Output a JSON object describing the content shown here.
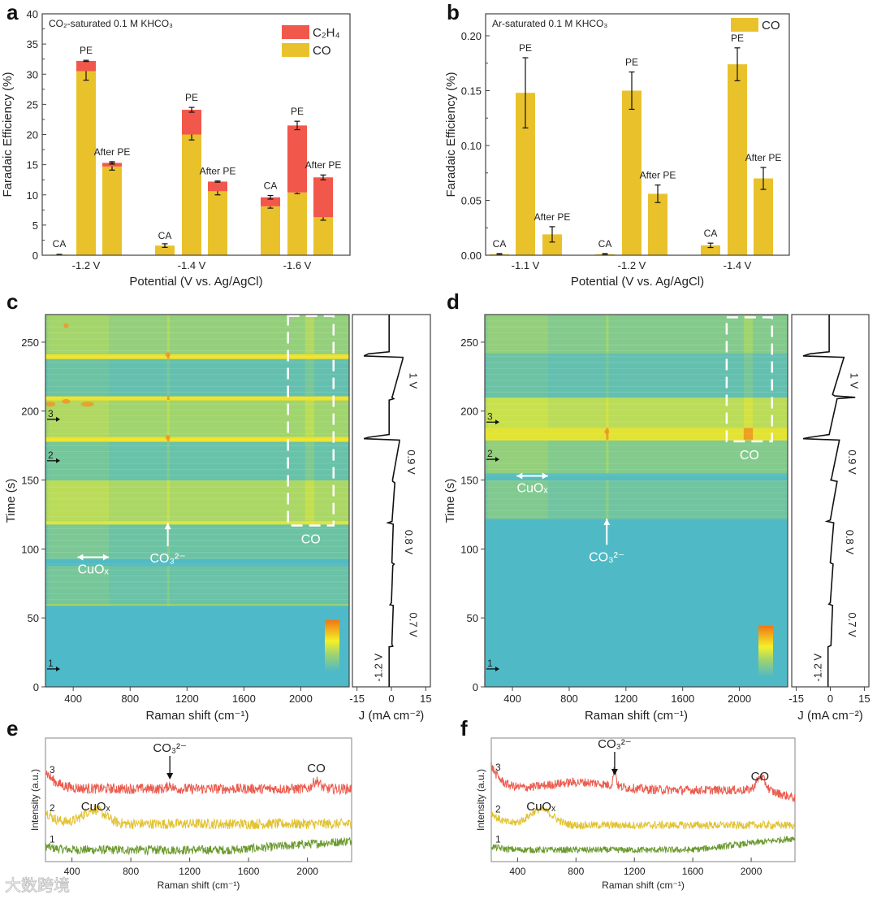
{
  "panel_letters": [
    "a",
    "b",
    "c",
    "d",
    "e",
    "f"
  ],
  "watermark": "大数跨境",
  "chart_data": [
    {
      "panel": "a",
      "type": "bar",
      "stacked": true,
      "title": "CO₂-saturated 0.1 M KHCO₃",
      "xlabel": "Potential (V vs. Ag/AgCl)",
      "ylabel": "Faradaic Efficiency (%)",
      "ylim": [
        0,
        40
      ],
      "yticks": [
        0,
        5,
        10,
        15,
        20,
        25,
        30,
        35,
        40
      ],
      "ytick_labels": [
        "0",
        "5",
        "10",
        "15",
        "20",
        "25",
        "30",
        "35",
        "40"
      ],
      "groups": [
        "-1.2 V",
        "-1.4 V",
        "-1.6 V"
      ],
      "bar_labels": [
        "CA",
        "PE",
        "After PE"
      ],
      "legend": [
        {
          "name": "C₂H₄",
          "color": "#f2574b"
        },
        {
          "name": "CO",
          "color": "#e9c22b"
        }
      ],
      "legend_position": "top-right",
      "series": [
        {
          "name": "CO",
          "color": "#e9c22b",
          "values": [
            [
              0.1,
              30.5,
              14.7
            ],
            [
              1.6,
              20.0,
              10.6
            ],
            [
              8.1,
              10.4,
              6.3
            ]
          ],
          "errors": [
            [
              0.05,
              1.5,
              0.6
            ],
            [
              0.3,
              0.9,
              0.6
            ],
            [
              0.3,
              0.2,
              0.5
            ]
          ]
        },
        {
          "name": "C₂H₄",
          "color": "#f2574b",
          "values": [
            [
              0,
              1.7,
              0.6
            ],
            [
              0,
              4.1,
              1.6
            ],
            [
              1.5,
              11.1,
              6.6
            ]
          ],
          "errors": [
            [
              0.05,
              0.1,
              0.2
            ],
            [
              0,
              0.4,
              0.1
            ],
            [
              0.3,
              0.7,
              0.4
            ]
          ]
        }
      ]
    },
    {
      "panel": "b",
      "type": "bar",
      "stacked": false,
      "title": "Ar-saturated 0.1 M KHCO₃",
      "xlabel": "Potential (V vs. Ag/AgCl)",
      "ylabel": "Faradaic Efficiency (%)",
      "ylim": [
        0,
        0.22
      ],
      "yticks": [
        0,
        0.05,
        0.1,
        0.15,
        0.2
      ],
      "ytick_labels": [
        "0.00",
        "0.05",
        "0.10",
        "0.15",
        "0.20"
      ],
      "groups": [
        "-1.1 V",
        "-1.2 V",
        "-1.4 V"
      ],
      "bar_labels": [
        "CA",
        "PE",
        "After PE"
      ],
      "legend": [
        {
          "name": "CO",
          "color": "#e9c22b"
        }
      ],
      "legend_position": "top-right",
      "series": [
        {
          "name": "CO",
          "color": "#e9c22b",
          "values": [
            [
              0.001,
              0.148,
              0.019
            ],
            [
              0.001,
              0.15,
              0.056
            ],
            [
              0.009,
              0.174,
              0.07
            ]
          ],
          "errors": [
            [
              0.0005,
              0.032,
              0.007
            ],
            [
              0.0005,
              0.017,
              0.008
            ],
            [
              0.002,
              0.015,
              0.01
            ]
          ]
        }
      ]
    },
    {
      "panel": "c",
      "type": "heatmap",
      "xlabel": "Raman shift (cm⁻¹)",
      "ylabel": "Time (s)",
      "xlim": [
        205,
        2340
      ],
      "ylim": [
        0,
        270
      ],
      "xticks": [
        400,
        800,
        1200,
        1600,
        2000
      ],
      "xtick_labels": [
        "400",
        "800",
        "1200",
        "1600",
        "2000"
      ],
      "yticks": [
        0,
        50,
        100,
        150,
        200,
        250
      ],
      "ytick_labels": [
        "0",
        "50",
        "100",
        "150",
        "200",
        "250"
      ],
      "bands": [
        [
          0,
          59,
          0.02
        ],
        [
          59,
          60.5,
          0.45
        ],
        [
          60.5,
          88,
          0.25
        ],
        [
          88,
          93,
          0.06
        ],
        [
          93,
          118,
          0.27
        ],
        [
          118,
          120.5,
          0.8
        ],
        [
          120.5,
          150,
          0.55
        ],
        [
          150,
          178,
          0.24
        ],
        [
          178,
          181.5,
          0.95
        ],
        [
          181.5,
          208,
          0.5
        ],
        [
          208,
          211,
          0.95
        ],
        [
          211,
          238,
          0.2
        ],
        [
          238,
          241.5,
          0.95
        ],
        [
          241.5,
          270,
          0.45
        ]
      ],
      "annotations": {
        "cuox": "CuOₓ",
        "co3": "CO₃²⁻",
        "co": "CO"
      },
      "markers": [
        {
          "label": "1",
          "t": 13
        },
        {
          "label": "2",
          "t": 164
        },
        {
          "label": "3",
          "t": 194
        }
      ],
      "current": {
        "xlabel": "J (mA cm⁻²)",
        "xlim": [
          -17,
          17
        ],
        "xticks": [
          -15,
          0,
          15
        ],
        "xtick_labels": [
          "-15",
          "0",
          "15"
        ],
        "points": [
          [
            0,
            -1
          ],
          [
            29,
            -1
          ],
          [
            29.5,
            0.6
          ],
          [
            31,
            0.2
          ],
          [
            59,
            0.8
          ],
          [
            59.5,
            -0.6
          ],
          [
            61,
            0
          ],
          [
            88,
            0.6
          ],
          [
            89,
            1.2
          ],
          [
            90,
            0.2
          ],
          [
            118,
            0.8
          ],
          [
            119,
            -1.5
          ],
          [
            120,
            0.3
          ],
          [
            148,
            1.5
          ],
          [
            149,
            0.6
          ],
          [
            150,
            0.5
          ],
          [
            178,
            3.5
          ],
          [
            179,
            3.5
          ],
          [
            180,
            -12
          ],
          [
            181,
            -10
          ],
          [
            183,
            -1
          ],
          [
            208,
            -1
          ],
          [
            209,
            1
          ],
          [
            210,
            0.2
          ],
          [
            211,
            0.5
          ],
          [
            238,
            5
          ],
          [
            239,
            5
          ],
          [
            240,
            -12
          ],
          [
            241.5,
            -10
          ],
          [
            243,
            -1
          ],
          [
            270,
            -1
          ]
        ],
        "voltage_labels": [
          {
            "label": "-1.2 V",
            "t": 14
          },
          {
            "label": "0.7 V",
            "t": 45
          },
          {
            "label": "0.8 V",
            "t": 105
          },
          {
            "label": "0.9 V",
            "t": 163
          },
          {
            "label": "1 V",
            "t": 222
          }
        ]
      }
    },
    {
      "panel": "d",
      "type": "heatmap",
      "xlabel": "Raman shift (cm⁻¹)",
      "ylabel": "Time (s)",
      "xlim": [
        205,
        2340
      ],
      "ylim": [
        0,
        270
      ],
      "xticks": [
        400,
        800,
        1200,
        1600,
        2000
      ],
      "xtick_labels": [
        "400",
        "800",
        "1200",
        "1600",
        "2000"
      ],
      "yticks": [
        0,
        50,
        100,
        150,
        200,
        250
      ],
      "ytick_labels": [
        "0",
        "50",
        "100",
        "150",
        "200",
        "250"
      ],
      "bands": [
        [
          0,
          122,
          0.04
        ],
        [
          122,
          150,
          0.3
        ],
        [
          150,
          155,
          0.1
        ],
        [
          155,
          179,
          0.38
        ],
        [
          179,
          188,
          0.85
        ],
        [
          188,
          210,
          0.62
        ],
        [
          210,
          242,
          0.2
        ],
        [
          242,
          270,
          0.38
        ]
      ],
      "annotations": {
        "cuox": "CuOₓ",
        "co3": "CO₃²⁻",
        "co": "CO"
      },
      "markers": [
        {
          "label": "1",
          "t": 13
        },
        {
          "label": "2",
          "t": 165
        },
        {
          "label": "3",
          "t": 192
        }
      ],
      "current": {
        "xlabel": "J (mA cm⁻²)",
        "xlim": [
          -17,
          17
        ],
        "xticks": [
          -15,
          0,
          15
        ],
        "xtick_labels": [
          "-15",
          "0",
          "15"
        ],
        "points": [
          [
            0,
            -1
          ],
          [
            29,
            -1
          ],
          [
            30,
            0.3
          ],
          [
            59,
            1
          ],
          [
            60,
            -0.6
          ],
          [
            61,
            0
          ],
          [
            89,
            1.2
          ],
          [
            90,
            0
          ],
          [
            119,
            1.5
          ],
          [
            120,
            -1.5
          ],
          [
            121,
            0
          ],
          [
            149,
            3
          ],
          [
            150,
            0.2
          ],
          [
            151,
            0.5
          ],
          [
            179,
            4
          ],
          [
            180,
            -12
          ],
          [
            181,
            -9
          ],
          [
            183,
            -0.5
          ],
          [
            209,
            3
          ],
          [
            210,
            11
          ],
          [
            211,
            2
          ],
          [
            212,
            1
          ],
          [
            239,
            6
          ],
          [
            240,
            -12
          ],
          [
            241.5,
            -9
          ],
          [
            243,
            -0.5
          ],
          [
            270,
            -0.5
          ]
        ],
        "voltage_labels": [
          {
            "label": "-1.2 V",
            "t": 14
          },
          {
            "label": "0.7 V",
            "t": 45
          },
          {
            "label": "0.8 V",
            "t": 105
          },
          {
            "label": "0.9 V",
            "t": 163
          },
          {
            "label": "1 V",
            "t": 222
          }
        ]
      }
    },
    {
      "panel": "e",
      "type": "line",
      "xlabel": "Raman shift (cm⁻¹)",
      "ylabel": "Intensity (a.u.)",
      "xlim": [
        220,
        2300
      ],
      "ylim": [
        0,
        9.5
      ],
      "xticks": [
        400,
        800,
        1200,
        1600,
        2000
      ],
      "xtick_labels": [
        "400",
        "800",
        "1200",
        "1600",
        "2000"
      ],
      "series": [
        {
          "name": "1",
          "color": "#6b9a2f",
          "offset": 0.9,
          "left_rise": 0.3,
          "ramp": [
            1500,
            2300,
            0.7
          ],
          "peaks": [],
          "noise": 0.35
        },
        {
          "name": "2",
          "color": "#e2c232",
          "offset": 2.9,
          "left_rise": 1.0,
          "ramp": [
            0,
            0,
            0
          ],
          "peaks": [
            [
              550,
              1.1,
              75
            ]
          ],
          "noise": 0.4
        },
        {
          "name": "3",
          "color": "#eb5b4e",
          "offset": 5.6,
          "left_rise": 1.4,
          "ramp": [
            0,
            0,
            0
          ],
          "peaks": [
            [
              1065,
              0.3,
              15
            ],
            [
              2060,
              0.6,
              25
            ]
          ],
          "noise": 0.4
        }
      ],
      "annotations": {
        "cuox": "CuOₓ",
        "co3": "CO₃²⁻",
        "co": "CO"
      }
    },
    {
      "panel": "f",
      "type": "line",
      "xlabel": "Raman shift (cm⁻¹)",
      "ylabel": "Intensity (a.u.)",
      "xlim": [
        220,
        2300
      ],
      "ylim": [
        0,
        9.5
      ],
      "xticks": [
        400,
        800,
        1200,
        1600,
        2000
      ],
      "xtick_labels": [
        "400",
        "800",
        "1200",
        "1600",
        "2000"
      ],
      "series": [
        {
          "name": "1",
          "color": "#6b9a2f",
          "offset": 0.9,
          "left_rise": 0.3,
          "ramp": [
            1600,
            2300,
            0.9
          ],
          "peaks": [],
          "noise": 0.25
        },
        {
          "name": "2",
          "color": "#e2c232",
          "offset": 2.8,
          "left_rise": 1.0,
          "ramp": [
            0,
            0,
            0
          ],
          "peaks": [
            [
              560,
              1.2,
              80
            ]
          ],
          "noise": 0.3
        },
        {
          "name": "3",
          "color": "#eb5b4e",
          "offset": 5.5,
          "left_rise": 1.9,
          "ramp": [
            2100,
            2300,
            -0.6
          ],
          "peaks": [
            [
              820,
              0.6,
              220
            ],
            [
              1065,
              1.3,
              10
            ],
            [
              2065,
              1.0,
              30
            ]
          ],
          "noise": 0.35
        }
      ],
      "annotations": {
        "cuox": "CuOₓ",
        "co3": "CO₃²⁻",
        "co": "CO"
      }
    }
  ]
}
